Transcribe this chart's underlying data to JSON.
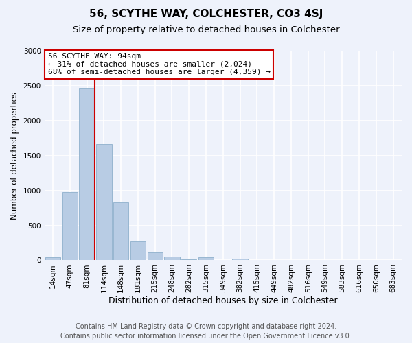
{
  "title": "56, SCYTHE WAY, COLCHESTER, CO3 4SJ",
  "subtitle": "Size of property relative to detached houses in Colchester",
  "xlabel": "Distribution of detached houses by size in Colchester",
  "ylabel": "Number of detached properties",
  "bar_labels": [
    "14sqm",
    "47sqm",
    "81sqm",
    "114sqm",
    "148sqm",
    "181sqm",
    "215sqm",
    "248sqm",
    "282sqm",
    "315sqm",
    "349sqm",
    "382sqm",
    "415sqm",
    "449sqm",
    "482sqm",
    "516sqm",
    "549sqm",
    "583sqm",
    "616sqm",
    "650sqm",
    "683sqm"
  ],
  "bar_values": [
    40,
    980,
    2460,
    1660,
    830,
    265,
    115,
    50,
    15,
    40,
    0,
    20,
    0,
    0,
    0,
    0,
    0,
    0,
    0,
    0,
    0
  ],
  "bar_color": "#b8cce4",
  "bar_edgecolor": "#8eb0cc",
  "vline_color": "#cc0000",
  "box_edgecolor": "#cc0000",
  "annotation_line1": "56 SCYTHE WAY: 94sqm",
  "annotation_line2": "← 31% of detached houses are smaller (2,024)",
  "annotation_line3": "68% of semi-detached houses are larger (4,359) →",
  "ylim": [
    0,
    3000
  ],
  "yticks": [
    0,
    500,
    1000,
    1500,
    2000,
    2500,
    3000
  ],
  "footer1": "Contains HM Land Registry data © Crown copyright and database right 2024.",
  "footer2": "Contains public sector information licensed under the Open Government Licence v3.0.",
  "background_color": "#eef2fb",
  "plot_bg_color": "#eef2fb",
  "grid_color": "#ffffff",
  "title_fontsize": 11,
  "subtitle_fontsize": 9.5,
  "xlabel_fontsize": 9,
  "ylabel_fontsize": 8.5,
  "tick_fontsize": 7.5,
  "annot_fontsize": 8,
  "footer_fontsize": 7
}
